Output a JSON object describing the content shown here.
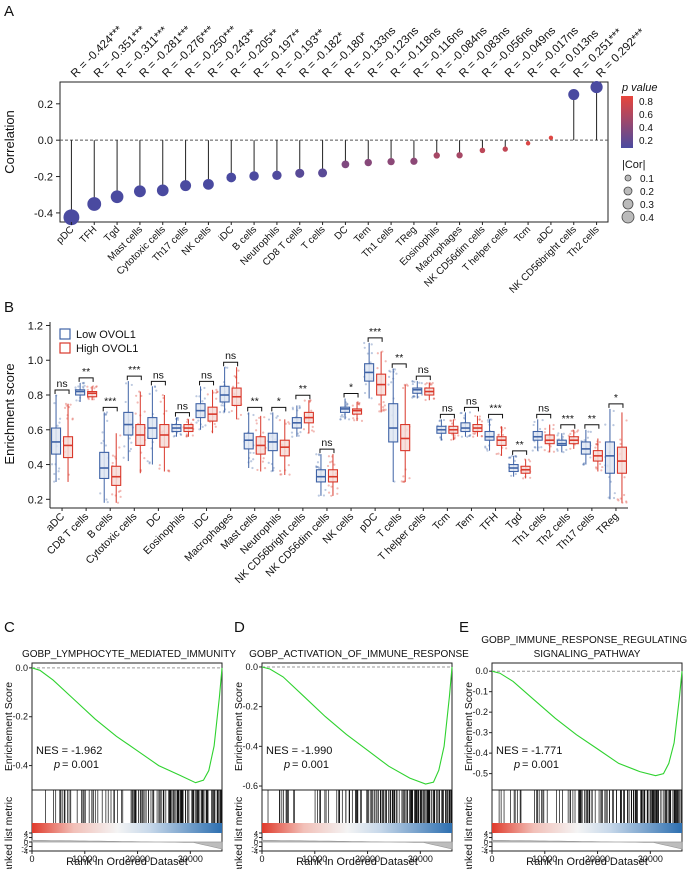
{
  "panel_labels": {
    "a": "A",
    "b": "B",
    "c": "C",
    "d": "D",
    "e": "E"
  },
  "chart_data": [
    {
      "type": "lollipop",
      "panel": "A",
      "ylabel": "Correlation",
      "ylim": [
        -0.45,
        0.32
      ],
      "yticks": [
        -0.4,
        -0.2,
        0.0,
        0.2
      ],
      "ytick_labels": [
        "-0.4",
        "-0.2",
        "0.0",
        "0.2"
      ],
      "categories": [
        "pDC",
        "TFH",
        "Tgd",
        "Mast cells",
        "Cytotoxic cells",
        "Th17 cells",
        "NK cells",
        "iDC",
        "B cells",
        "Neutrophils",
        "CD8 T cells",
        "T cells",
        "DC",
        "Tem",
        "Th1 cells",
        "TReg",
        "Eosinophils",
        "Macrophages",
        "NK CD56dim cells",
        "T helper cells",
        "Tcm",
        "aDC",
        "NK CD56bright cells",
        "Th2 cells"
      ],
      "values": [
        -0.424,
        -0.351,
        -0.311,
        -0.281,
        -0.276,
        -0.25,
        -0.243,
        -0.205,
        -0.197,
        -0.193,
        -0.182,
        -0.18,
        -0.133,
        -0.123,
        -0.118,
        -0.116,
        -0.084,
        -0.083,
        -0.056,
        -0.049,
        -0.017,
        0.013,
        0.251,
        0.292
      ],
      "r_labels": [
        "R = -0.424***",
        "R = -0.351***",
        "R = -0.311***",
        "R = -0.281***",
        "R = -0.276***",
        "R = -0.250***",
        "R = -0.243**",
        "R = -0.205**",
        "R = -0.197**",
        "R = -0.193**",
        "R = -0.182*",
        "R = -0.180*",
        "R = -0.133ns",
        "R = -0.123ns",
        "R = -0.118ns",
        "R = -0.116ns",
        "R = -0.084ns",
        "R = -0.083ns",
        "R = -0.056ns",
        "R = -0.049ns",
        "R = -0.017ns",
        "R = 0.013ns",
        "R = 0.251***",
        "R = 0.292***"
      ],
      "pvalue_legend": {
        "title": "p value",
        "ticks": [
          "0.8",
          "0.6",
          "0.4",
          "0.2"
        ],
        "color_low": "#e8463c",
        "color_high": "#4a4aa0"
      },
      "cor_legend": {
        "title": "|Cor|",
        "values": [
          "0.1",
          "0.2",
          "0.3",
          "0.4"
        ]
      }
    },
    {
      "type": "boxplot",
      "panel": "B",
      "ylabel": "Enrichment score",
      "ylim": [
        0.15,
        1.22
      ],
      "yticks": [
        "0.2",
        "0.4",
        "0.6",
        "0.8",
        "1.0",
        "1.2"
      ],
      "legend": [
        {
          "name": "Low OVOL1",
          "color": "#3f63a6"
        },
        {
          "name": "High OVOL1",
          "color": "#d9382b"
        }
      ],
      "categories": [
        "aDC",
        "CD8 T cells",
        "B cells",
        "Cytotoxic cells",
        "DC",
        "Eosinophils",
        "iDC",
        "Macrophages",
        "Mast cells",
        "Neutrophils",
        "NK CD56bright cells",
        "NK CD56dim cells",
        "NK cells",
        "pDC",
        "T cells",
        "T helper cells",
        "Tcm",
        "Tem",
        "TFH",
        "Tgd",
        "Th1 cells",
        "Th2 cells",
        "Th17 cells",
        "TReg"
      ],
      "significance": [
        "ns",
        "**",
        "***",
        "***",
        "ns",
        "ns",
        "ns",
        "ns",
        "**",
        "*",
        "**",
        "ns",
        "*",
        "***",
        "**",
        "ns",
        "ns",
        "ns",
        "***",
        "**",
        "ns",
        "***",
        "**",
        "*"
      ],
      "series": [
        {
          "name": "Low OVOL1",
          "boxes": [
            [
              0.3,
              0.46,
              0.53,
              0.61,
              0.8
            ],
            [
              0.76,
              0.8,
              0.82,
              0.83,
              0.87
            ],
            [
              0.18,
              0.32,
              0.38,
              0.47,
              0.7
            ],
            [
              0.42,
              0.57,
              0.63,
              0.7,
              0.88
            ],
            [
              0.4,
              0.55,
              0.61,
              0.67,
              0.85
            ],
            [
              0.56,
              0.59,
              0.61,
              0.63,
              0.67
            ],
            [
              0.6,
              0.67,
              0.71,
              0.75,
              0.85
            ],
            [
              0.7,
              0.76,
              0.8,
              0.85,
              0.96
            ],
            [
              0.38,
              0.49,
              0.54,
              0.58,
              0.7
            ],
            [
              0.36,
              0.48,
              0.53,
              0.58,
              0.7
            ],
            [
              0.56,
              0.61,
              0.64,
              0.67,
              0.74
            ],
            [
              0.22,
              0.3,
              0.33,
              0.37,
              0.46
            ],
            [
              0.66,
              0.7,
              0.72,
              0.73,
              0.78
            ],
            [
              0.78,
              0.88,
              0.93,
              0.98,
              1.1
            ],
            [
              0.3,
              0.53,
              0.61,
              0.75,
              0.95
            ],
            [
              0.78,
              0.81,
              0.83,
              0.84,
              0.88
            ],
            [
              0.54,
              0.58,
              0.6,
              0.62,
              0.66
            ],
            [
              0.56,
              0.59,
              0.61,
              0.64,
              0.7
            ],
            [
              0.48,
              0.54,
              0.56,
              0.59,
              0.66
            ],
            [
              0.33,
              0.36,
              0.38,
              0.4,
              0.45
            ],
            [
              0.48,
              0.54,
              0.56,
              0.59,
              0.66
            ],
            [
              0.47,
              0.51,
              0.52,
              0.54,
              0.58
            ],
            [
              0.4,
              0.46,
              0.49,
              0.53,
              0.6
            ],
            [
              0.2,
              0.35,
              0.45,
              0.53,
              0.72
            ]
          ]
        },
        {
          "name": "High OVOL1",
          "boxes": [
            [
              0.3,
              0.44,
              0.51,
              0.56,
              0.75
            ],
            [
              0.77,
              0.79,
              0.81,
              0.82,
              0.85
            ],
            [
              0.18,
              0.28,
              0.33,
              0.39,
              0.58
            ],
            [
              0.35,
              0.51,
              0.57,
              0.63,
              0.82
            ],
            [
              0.36,
              0.5,
              0.57,
              0.63,
              0.8
            ],
            [
              0.56,
              0.59,
              0.61,
              0.63,
              0.66
            ],
            [
              0.58,
              0.65,
              0.69,
              0.73,
              0.83
            ],
            [
              0.66,
              0.74,
              0.79,
              0.84,
              0.96
            ],
            [
              0.36,
              0.46,
              0.51,
              0.56,
              0.68
            ],
            [
              0.34,
              0.45,
              0.5,
              0.54,
              0.66
            ],
            [
              0.58,
              0.64,
              0.67,
              0.7,
              0.77
            ],
            [
              0.22,
              0.3,
              0.33,
              0.37,
              0.46
            ],
            [
              0.65,
              0.69,
              0.71,
              0.72,
              0.76
            ],
            [
              0.7,
              0.8,
              0.86,
              0.92,
              1.05
            ],
            [
              0.3,
              0.48,
              0.55,
              0.63,
              0.86
            ],
            [
              0.77,
              0.8,
              0.82,
              0.84,
              0.87
            ],
            [
              0.54,
              0.58,
              0.6,
              0.62,
              0.66
            ],
            [
              0.56,
              0.59,
              0.61,
              0.63,
              0.68
            ],
            [
              0.45,
              0.51,
              0.54,
              0.56,
              0.62
            ],
            [
              0.32,
              0.35,
              0.37,
              0.39,
              0.43
            ],
            [
              0.47,
              0.52,
              0.54,
              0.57,
              0.63
            ],
            [
              0.49,
              0.52,
              0.54,
              0.56,
              0.6
            ],
            [
              0.36,
              0.42,
              0.45,
              0.48,
              0.55
            ],
            [
              0.18,
              0.35,
              0.42,
              0.5,
              0.7
            ]
          ]
        }
      ]
    },
    {
      "type": "line",
      "panel": "C",
      "title": "GOBP_LYMPHOCYTE_MEDIATED_IMMUNITY",
      "nes_text": "NES = -1.962",
      "p_label": "p",
      "p_value": "= 0.001",
      "ylabel_top": "Enrichement Score",
      "ylabel_bottom": "Ranked list metric",
      "xlabel": "Rank in Ordered Dataset",
      "ylim": [
        -0.5,
        0.02
      ],
      "yticks": [
        "0.0",
        "-0.2",
        "-0.4"
      ],
      "xlim": [
        0,
        36000
      ],
      "xticks": [
        "0",
        "10000",
        "20000",
        "30000"
      ],
      "metric_ticks": [
        "4",
        "2",
        "0",
        "-2",
        "-4"
      ],
      "x": [
        0,
        1500,
        4000,
        8000,
        12000,
        16000,
        20000,
        24000,
        28000,
        31000,
        32500,
        33500,
        34500,
        35500,
        36000
      ],
      "y": [
        0.0,
        -0.01,
        -0.05,
        -0.13,
        -0.21,
        -0.28,
        -0.34,
        -0.4,
        -0.44,
        -0.47,
        -0.46,
        -0.42,
        -0.32,
        -0.12,
        0.0
      ]
    },
    {
      "type": "line",
      "panel": "D",
      "title": "GOBP_ACTIVATION_OF_IMMUNE_RESPONSE",
      "nes_text": "NES = -1.990",
      "p_label": "p",
      "p_value": "= 0.001",
      "ylabel_top": "Enrichement Score",
      "ylabel_bottom": "Ranked list metric",
      "xlabel": "Rank in Ordered Dataset",
      "ylim": [
        -0.62,
        0.02
      ],
      "yticks": [
        "0.0",
        "-0.2",
        "-0.4",
        "-0.6"
      ],
      "xlim": [
        0,
        36000
      ],
      "xticks": [
        "0",
        "10000",
        "20000",
        "30000"
      ],
      "metric_ticks": [
        "4",
        "2",
        "0",
        "-2",
        "-4"
      ],
      "x": [
        0,
        1500,
        4000,
        8000,
        12000,
        16000,
        20000,
        24000,
        28000,
        31000,
        32500,
        33500,
        34500,
        35500,
        36000
      ],
      "y": [
        0.0,
        -0.01,
        -0.05,
        -0.15,
        -0.25,
        -0.34,
        -0.42,
        -0.5,
        -0.56,
        -0.59,
        -0.58,
        -0.52,
        -0.4,
        -0.15,
        0.0
      ]
    },
    {
      "type": "line",
      "panel": "E",
      "title_lines": [
        "GOBP_IMMUNE_RESPONSE_REGULATING_",
        "SIGNALING_PATHWAY"
      ],
      "nes_text": "NES = -1.771",
      "p_label": "p",
      "p_value": "= 0.001",
      "ylabel_top": "Enrichement Score",
      "ylabel_bottom": "Ranked list metric",
      "xlabel": "Rank in Ordered Dataset",
      "ylim": [
        -0.58,
        0.04
      ],
      "yticks": [
        "0.0",
        "-0.1",
        "-0.2",
        "-0.3",
        "-0.4",
        "-0.5"
      ],
      "xlim": [
        0,
        36000
      ],
      "xticks": [
        "0",
        "10000",
        "20000",
        "30000"
      ],
      "metric_ticks": [
        "4",
        "2",
        "0",
        "-2",
        "-4"
      ],
      "x": [
        0,
        1500,
        4000,
        8000,
        12000,
        16000,
        20000,
        24000,
        28000,
        31000,
        32500,
        33500,
        34500,
        35500,
        36000
      ],
      "y": [
        0.0,
        -0.01,
        -0.05,
        -0.14,
        -0.23,
        -0.31,
        -0.38,
        -0.45,
        -0.49,
        -0.51,
        -0.5,
        -0.45,
        -0.35,
        -0.13,
        0.0
      ]
    }
  ]
}
